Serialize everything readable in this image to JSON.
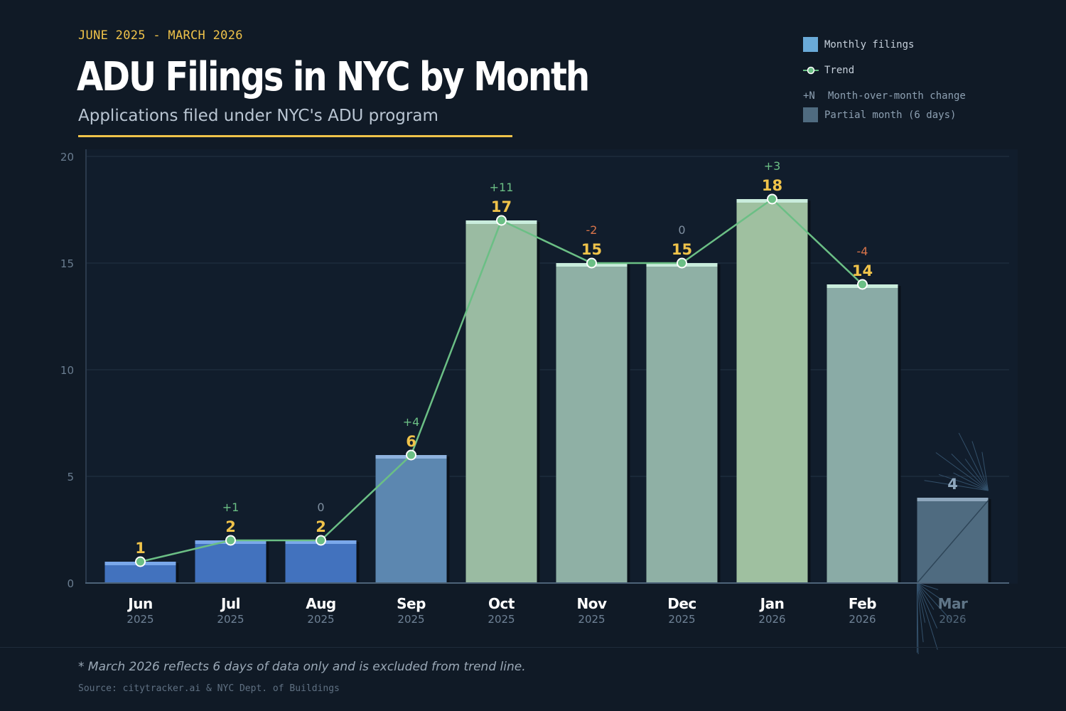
{
  "header": {
    "date_range": "JUNE 2025 - MARCH 2026",
    "title": "ADU Filings in NYC by Month",
    "subtitle": "Applications filed under NYC's ADU program"
  },
  "legend": {
    "monthly": "Monthly filings",
    "trend": "Trend",
    "change_marker": "+N",
    "change": "Month-over-month change",
    "partial": "Partial month (6 days)"
  },
  "footer": {
    "note": "* March 2026 reflects 6 days of data only and is excluded from trend line.",
    "source": "Source: citytracker.ai & NYC Dept. of Buildings"
  },
  "colors": {
    "background": "#101a26",
    "trend": "#6bbf85",
    "value_label": "#f0c34a",
    "positive": "#6bbf85",
    "negative": "#d9744a",
    "zero": "#7f8fa0",
    "partial": "#4f6b80"
  },
  "chart_data": {
    "type": "bar",
    "categories": [
      "Jun",
      "Jul",
      "Aug",
      "Sep",
      "Oct",
      "Nov",
      "Dec",
      "Jan",
      "Feb",
      "Mar"
    ],
    "years": [
      "2025",
      "2025",
      "2025",
      "2025",
      "2025",
      "2025",
      "2025",
      "2026",
      "2026",
      "2026"
    ],
    "values": [
      1,
      2,
      2,
      6,
      17,
      15,
      15,
      18,
      14,
      4
    ],
    "changes": [
      "",
      "+1",
      "0",
      "+4",
      "+11",
      "-2",
      "0",
      "+3",
      "-4",
      ""
    ],
    "partial": [
      false,
      false,
      false,
      false,
      false,
      false,
      false,
      false,
      false,
      true
    ],
    "trend_excludes_partial": true,
    "ylim": [
      0,
      20
    ],
    "yticks": [
      0,
      5,
      10,
      15,
      20
    ],
    "grid": true,
    "legend_position": "top-right"
  }
}
